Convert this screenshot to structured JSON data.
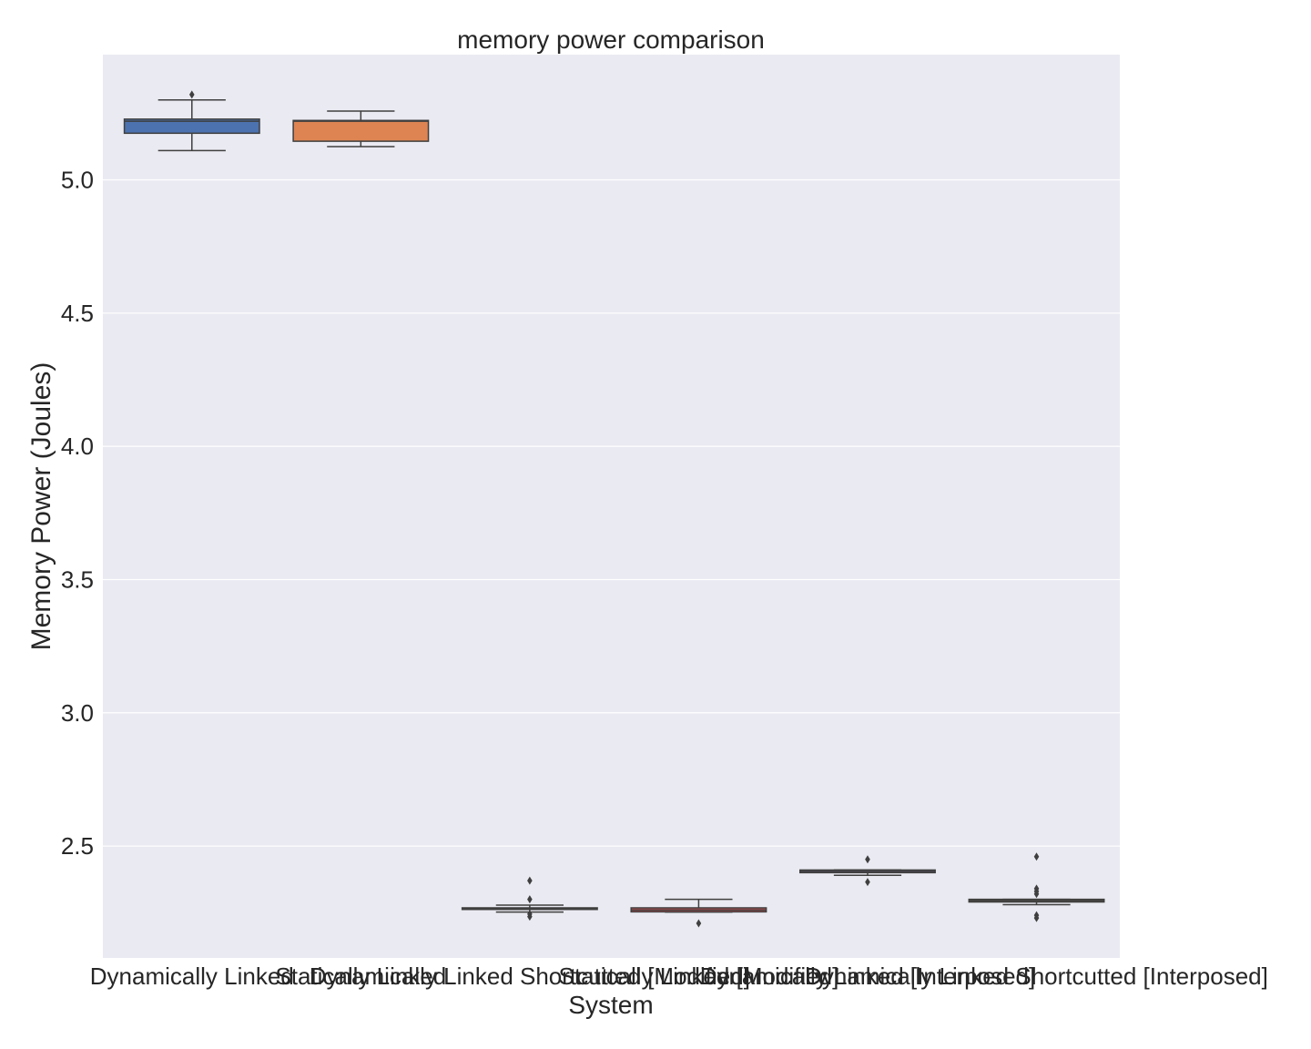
{
  "chart_data": {
    "type": "box",
    "title": "memory power comparison",
    "xlabel": "System",
    "ylabel": "Memory Power (Joules)",
    "ylim": [
      2.08,
      5.47
    ],
    "yticks": [
      2.5,
      3.0,
      3.5,
      4.0,
      4.5,
      5.0
    ],
    "ytick_labels": [
      "2.5",
      "3.0",
      "3.5",
      "4.0",
      "4.5",
      "5.0"
    ],
    "grid": true,
    "categories": [
      "Dynamically Linked",
      "Statically Linked",
      "Dynamically Linked Shortcutted [Modified]",
      "Statically Linked [Modified]",
      "Dynamically Linked [Interposed]",
      "Dynamically Linked Shortcutted [Interposed]"
    ],
    "series": [
      {
        "color": "#4c72b0",
        "whisker_low": 5.11,
        "q1": 5.175,
        "median": 5.22,
        "q3": 5.228,
        "whisker_high": 5.3,
        "outliers": [
          5.32
        ]
      },
      {
        "color": "#dd8452",
        "whisker_low": 5.125,
        "q1": 5.145,
        "median": 5.22,
        "q3": 5.223,
        "whisker_high": 5.258,
        "outliers": []
      },
      {
        "color": "#55a868",
        "whisker_low": 2.252,
        "q1": 2.262,
        "median": 2.266,
        "q3": 2.268,
        "whisker_high": 2.278,
        "outliers": [
          2.37,
          2.3,
          2.245,
          2.235
        ]
      },
      {
        "color": "#c44e52",
        "whisker_low": 2.252,
        "q1": 2.253,
        "median": 2.26,
        "q3": 2.268,
        "whisker_high": 2.3,
        "outliers": [
          2.21
        ]
      },
      {
        "color": "#8172b3",
        "whisker_low": 2.39,
        "q1": 2.4,
        "median": 2.405,
        "q3": 2.41,
        "whisker_high": 2.41,
        "outliers": [
          2.45,
          2.365
        ]
      },
      {
        "color": "#937860",
        "whisker_low": 2.28,
        "q1": 2.29,
        "median": 2.295,
        "q3": 2.3,
        "whisker_high": 2.3,
        "outliers": [
          2.46,
          2.34,
          2.33,
          2.32,
          2.24,
          2.23
        ]
      }
    ]
  }
}
